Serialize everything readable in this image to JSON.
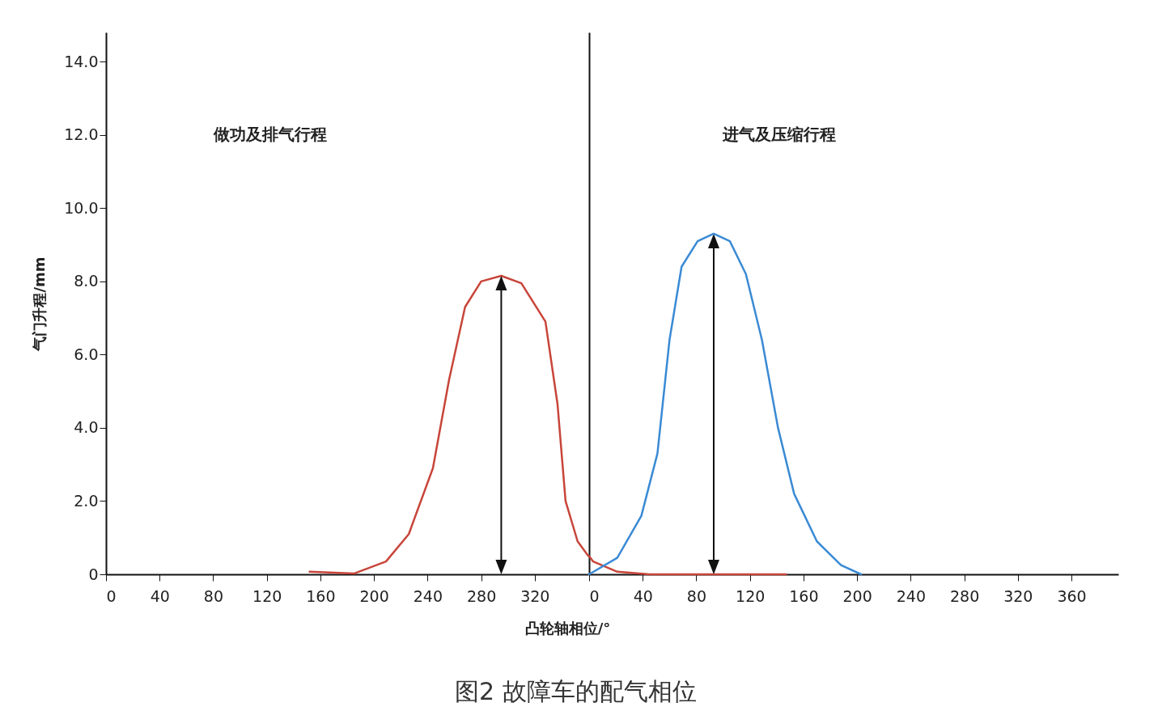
{
  "chart_data": [
    {
      "type": "line",
      "title": "图2  故障车的配气相位",
      "ylabel": "气门升程/mm",
      "annotations": [
        "做功及排气行程"
      ],
      "series": [
        {
          "color": "#c8453a",
          "x": [
            152,
            185,
            209,
            226,
            244,
            256,
            268,
            280,
            295,
            310,
            328,
            337,
            343,
            352,
            360
          ],
          "values": [
            0.07,
            0.02,
            0.35,
            1.1,
            2.9,
            5.3,
            7.3,
            8.0,
            8.15,
            7.95,
            6.9,
            4.65,
            2.0,
            0.9,
            0.5
          ]
        }
      ],
      "xlim": [
        0,
        360
      ],
      "ylim": [
        0,
        14.8
      ],
      "xticks": [
        0,
        40,
        80,
        120,
        160,
        200,
        240,
        280,
        320
      ],
      "yticks": [
        0,
        {
          "value": 2,
          "label": "2.0"
        },
        {
          "value": 4,
          "label": "4.0"
        },
        {
          "value": 6,
          "label": "6.0"
        },
        {
          "value": 8,
          "label": "8.0"
        },
        {
          "value": 10,
          "label": "10.0"
        },
        {
          "value": 12,
          "label": "12.0"
        },
        {
          "value": 14,
          "label": "14.0"
        }
      ],
      "grid": false,
      "legend": false,
      "marker": "none",
      "line_style": "solid"
    },
    {
      "type": "line",
      "xlabel": "凸轮轴相位/°",
      "annotations": [
        "进气及压缩行程"
      ],
      "series": [
        {
          "color": "#c8453a",
          "x": [
            0,
            3,
            21,
            45,
            147
          ],
          "values": [
            0.5,
            0.35,
            0.07,
            0,
            0
          ]
        },
        {
          "color": "#3a8ad4",
          "x": [
            0,
            21,
            39,
            51,
            60,
            69,
            81,
            93,
            105,
            117,
            129,
            141,
            153,
            170,
            188,
            203
          ],
          "values": [
            0,
            0.45,
            1.6,
            3.3,
            6.4,
            8.4,
            9.1,
            9.3,
            9.1,
            8.2,
            6.4,
            4.0,
            2.2,
            0.9,
            0.25,
            0
          ]
        }
      ],
      "xlim": [
        0,
        395
      ],
      "ylim": [
        0,
        14.8
      ],
      "xticks": [
        0,
        40,
        80,
        120,
        160,
        200,
        240,
        280,
        320,
        360
      ],
      "tick_labels": "x",
      "grid": false,
      "legend": false,
      "marker": "none",
      "line_style": "solid"
    }
  ]
}
